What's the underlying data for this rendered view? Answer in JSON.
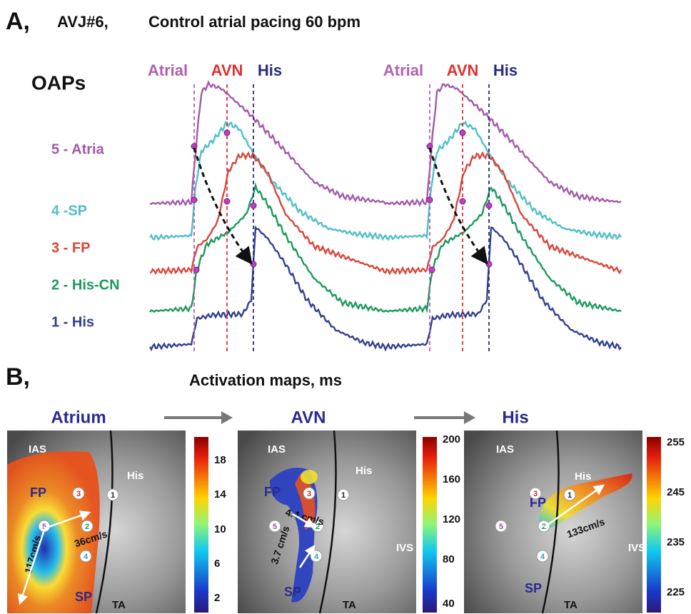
{
  "panel_a": {
    "label": "A,",
    "id": "AVJ#6,",
    "title": "Control atrial pacing 60 bpm",
    "ylabel": "OAPs",
    "markers": [
      "Atrial",
      "AVN",
      "His"
    ],
    "traces": [
      "5 - Atria",
      "4 -SP",
      "3 - FP",
      "2 - His-CN",
      "1 - His"
    ]
  },
  "panel_b": {
    "label": "B,",
    "title": "Activation maps, ms",
    "sites": [
      "1",
      "2",
      "3",
      "4",
      "5"
    ],
    "anatomy": {
      "ias": "IAS",
      "his": "His",
      "fp": "FP",
      "sp": "SP",
      "ta": "TA",
      "ivs": "IVS"
    },
    "maps": [
      {
        "title": "Atrium",
        "colorbar_ticks": [
          18,
          14,
          10,
          6,
          2
        ],
        "velocities": [
          "36cm/s",
          "117cm/s"
        ]
      },
      {
        "title": "AVN",
        "colorbar_ticks": [
          200,
          160,
          120,
          80,
          40
        ],
        "velocities": [
          "4.4 cm/s",
          "3.7 cm/s"
        ]
      },
      {
        "title": "His",
        "colorbar_ticks": [
          255,
          245,
          235,
          225
        ],
        "velocities": [
          "133cm/s"
        ]
      }
    ]
  }
}
